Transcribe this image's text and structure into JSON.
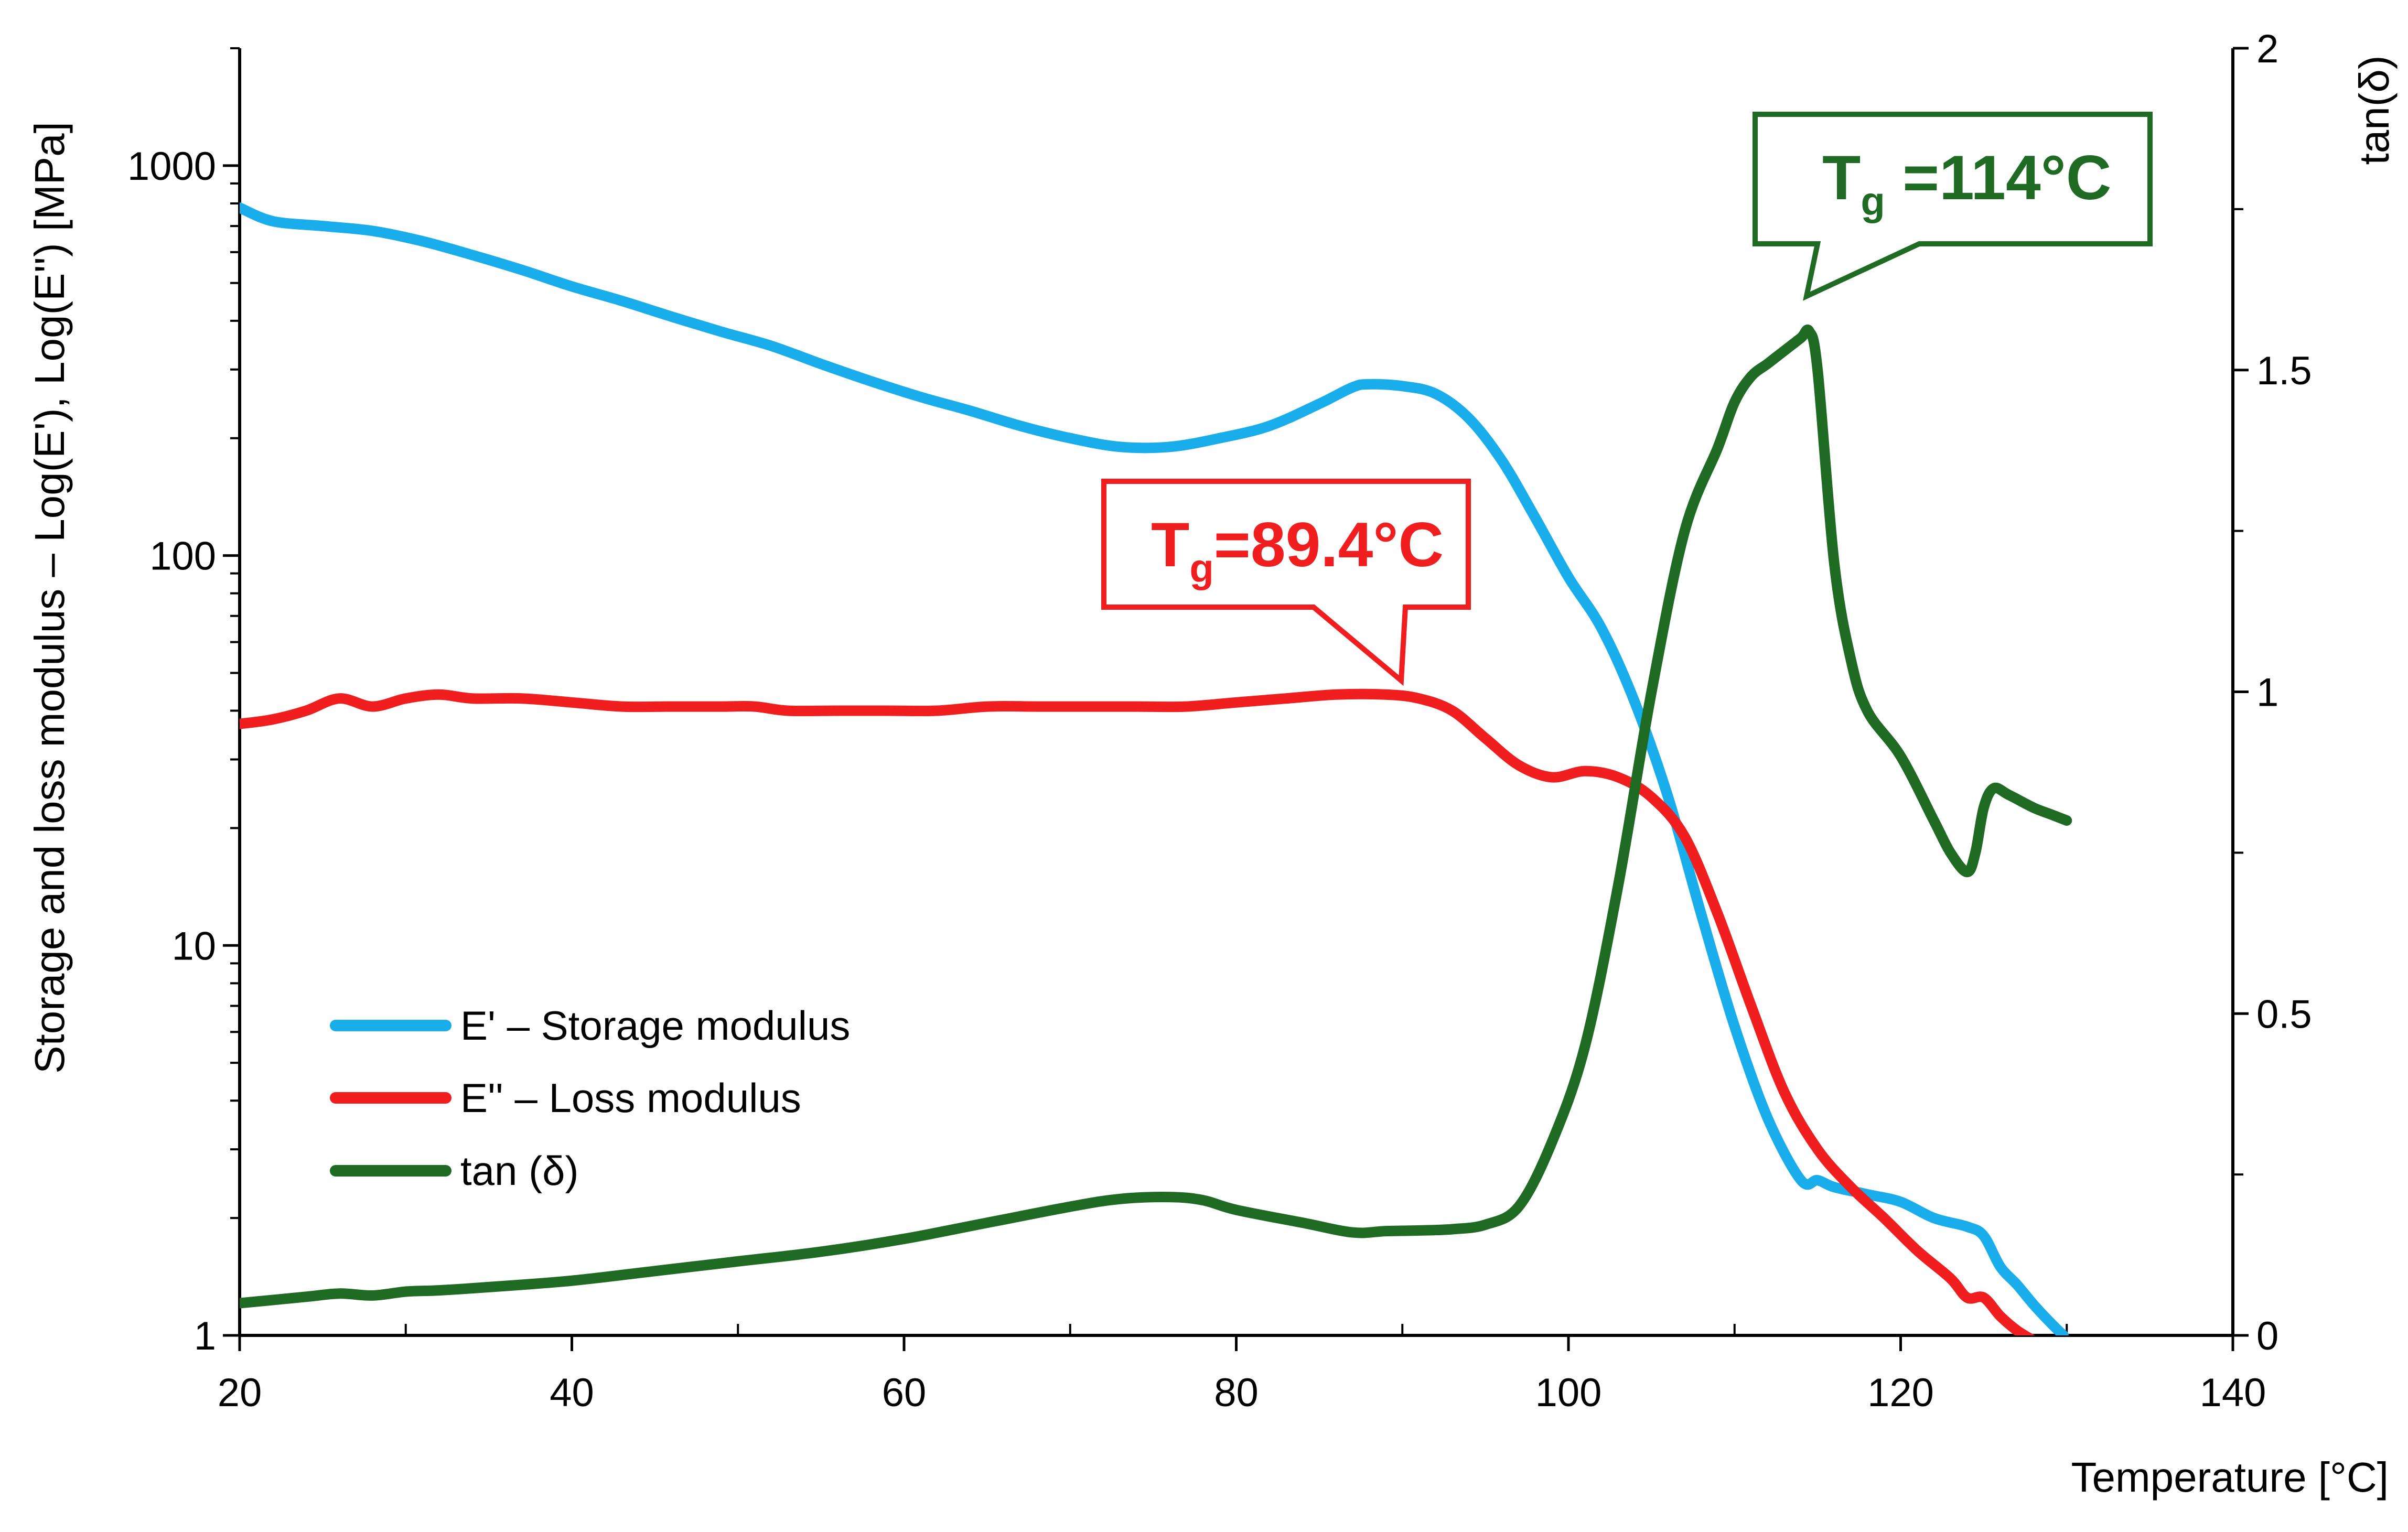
{
  "chart_data": {
    "type": "line",
    "xlabel": "Temperature  [°C]",
    "ylabel_left": "Storage  and loss modulus – Log(E'), Log(E'') [MPa]",
    "ylabel_right": "tan(δ)",
    "xlim": [
      20,
      140
    ],
    "ylim_left": [
      1,
      2000
    ],
    "ylim_right": [
      0,
      2
    ],
    "yscale_left": "log",
    "x_ticks": [
      20,
      40,
      60,
      80,
      100,
      120,
      140
    ],
    "x_tick_labels": [
      "20",
      "40",
      "60",
      "80",
      "100",
      "120",
      "140"
    ],
    "y_left_ticks": [
      1,
      10,
      100,
      1000
    ],
    "y_left_tick_labels": [
      "1",
      "10",
      "100",
      "1000"
    ],
    "y_right_ticks": [
      0,
      0.5,
      1,
      1.5,
      2
    ],
    "y_right_tick_labels": [
      "0",
      "0.5",
      "1",
      "1.5",
      "2"
    ],
    "series": [
      {
        "name": "E' – Storage modulus",
        "axis": "left",
        "color": "#1aadeb",
        "x": [
          20,
          22,
          25,
          28,
          31,
          34,
          37,
          40,
          43,
          46,
          49,
          52,
          55,
          58,
          61,
          64,
          67,
          70,
          73,
          76,
          79,
          82,
          85,
          87,
          88,
          90,
          92,
          94,
          96,
          98,
          100,
          102,
          104,
          106,
          108,
          110,
          112,
          114,
          115,
          116,
          118,
          120,
          122,
          124,
          125,
          126,
          127,
          128,
          129,
          129.8
        ],
        "y": [
          780,
          720,
          700,
          680,
          640,
          590,
          540,
          490,
          450,
          410,
          375,
          345,
          310,
          280,
          255,
          235,
          215,
          200,
          190,
          190,
          200,
          215,
          245,
          270,
          275,
          272,
          260,
          225,
          175,
          125,
          88,
          65,
          42,
          24,
          12,
          6.2,
          3.6,
          2.5,
          2.5,
          2.4,
          2.3,
          2.2,
          2.0,
          1.9,
          1.8,
          1.5,
          1.35,
          1.2,
          1.08,
          1.0
        ]
      },
      {
        "name": "E'' – Loss modulus",
        "axis": "left",
        "color": "#f01e1e",
        "x": [
          20,
          22,
          24,
          26,
          28,
          30,
          32,
          34,
          37,
          40,
          43,
          46,
          49,
          51,
          53,
          56,
          59,
          62,
          65,
          68,
          71,
          74,
          77,
          80,
          83,
          86,
          89,
          91,
          93,
          95,
          97,
          99,
          101,
          103,
          105,
          107,
          109,
          111,
          113,
          115,
          117,
          119,
          121,
          123,
          124,
          125,
          126,
          127,
          128
        ],
        "y": [
          37,
          38,
          40,
          43,
          41,
          43,
          44,
          43,
          43,
          42,
          41,
          41,
          41,
          41,
          40,
          40,
          40,
          40,
          41,
          41,
          41,
          41,
          41,
          42,
          43,
          44,
          44,
          43,
          40,
          34,
          29,
          27,
          28,
          27,
          24,
          19,
          12,
          7,
          4.2,
          3.0,
          2.4,
          2.0,
          1.65,
          1.4,
          1.25,
          1.25,
          1.12,
          1.03,
          0.97
        ]
      },
      {
        "name": "tan (δ)",
        "axis": "right",
        "color": "#1f6b24",
        "x": [
          20,
          24,
          26,
          28,
          30,
          32,
          35,
          40,
          45,
          50,
          55,
          60,
          65,
          70,
          73,
          76,
          78,
          80,
          84,
          87,
          89,
          91,
          93,
          95,
          97,
          99,
          101,
          103,
          105,
          107,
          109,
          110,
          111,
          112,
          113,
          114,
          114.5,
          115,
          116,
          117,
          118,
          120,
          122,
          123,
          124,
          124.5,
          125,
          125.6,
          126.5,
          128,
          129,
          130
        ],
        "y": [
          0.05,
          0.06,
          0.065,
          0.062,
          0.068,
          0.07,
          0.075,
          0.085,
          0.1,
          0.115,
          0.13,
          0.15,
          0.175,
          0.2,
          0.212,
          0.215,
          0.21,
          0.195,
          0.175,
          0.16,
          0.162,
          0.163,
          0.165,
          0.172,
          0.2,
          0.3,
          0.45,
          0.7,
          1.0,
          1.25,
          1.38,
          1.45,
          1.49,
          1.51,
          1.53,
          1.55,
          1.56,
          1.5,
          1.2,
          1.05,
          0.97,
          0.9,
          0.8,
          0.75,
          0.72,
          0.75,
          0.82,
          0.85,
          0.84,
          0.82,
          0.81,
          0.8
        ]
      }
    ],
    "annotations": [
      {
        "main": "T",
        "sub": "g",
        "value": "=89.4°C",
        "color": "#f01e1e",
        "target_x": 89.4
      },
      {
        "main": "T",
        "sub": "g",
        "value": " =114°C",
        "color": "#1f6b24",
        "target_x": 114
      }
    ],
    "legend_position": "center-left"
  }
}
